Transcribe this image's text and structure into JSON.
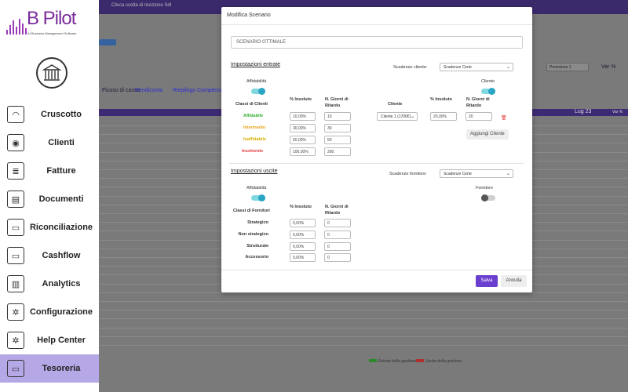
{
  "sidebar": {
    "logo": {
      "text": "B Pilot",
      "subtitle": "AI Business Management Software"
    },
    "items": [
      {
        "label": "Cruscotto",
        "icon": "gauge-icon"
      },
      {
        "label": "Clienti",
        "icon": "user-icon"
      },
      {
        "label": "Fatture",
        "icon": "invoice-icon"
      },
      {
        "label": "Documenti",
        "icon": "document-icon"
      },
      {
        "label": "Riconciliazione",
        "icon": "bank-note-icon"
      },
      {
        "label": "Cashflow",
        "icon": "cash-icon"
      },
      {
        "label": "Analytics",
        "icon": "bar-chart-icon"
      },
      {
        "label": "Configurazione",
        "icon": "gear-icon"
      },
      {
        "label": "Help Center",
        "icon": "gear-icon"
      },
      {
        "label": "Tesoreria",
        "icon": "money-icon"
      }
    ],
    "active_index": 9
  },
  "background": {
    "top_text": "Clicca scelta di ricezione SdI",
    "tabs": [
      "Flusso di cassa",
      "Rendiconto",
      "Riepilogo Complessivo"
    ],
    "header_cols": [
      "Lug 23",
      "Var %"
    ],
    "select_value": "Previsione 1",
    "var_label": "Var %",
    "legend": [
      "Entrate della gestione",
      "Uscite della gestione"
    ]
  },
  "modal": {
    "title": "Modifica Scenario",
    "scenario_name": "SCENARIO OTTIMALE",
    "entrate": {
      "title": "Impostazioni entrate",
      "scadenze_label": "Scadenze cliente:",
      "scadenze_value": "Scadenze Certe",
      "affidabilita_label": "Affidabilità",
      "cliente_toggle_label": "Cliente",
      "col_classi": "Classi di Clienti",
      "col_insoluto": "% Insoluto",
      "col_giorni": "N. Giorni di Ritardo",
      "rows": [
        {
          "label": "Affidabile",
          "color": "#2fae2f",
          "insoluto": "10,00%",
          "giorni": "10"
        },
        {
          "label": "Intermedio",
          "color": "#e8a21a",
          "insoluto": "30,00%",
          "giorni": "30"
        },
        {
          "label": "Inaffidabile",
          "color": "#d6b000",
          "insoluto": "50,00%",
          "giorni": "50"
        },
        {
          "label": "Insolvente",
          "color": "#e03a3a",
          "insoluto": "100,00%",
          "giorni": "200"
        }
      ],
      "col_cliente": "Cliente",
      "col_insoluto2": "% Insoluto",
      "col_giorni2": "N. Giorni di Ritardo",
      "cliente_row": {
        "cliente": "Cliente 1 (1700€)",
        "insoluto": "20,00%",
        "giorni": "20"
      },
      "add_button": "Aggiungi Cliente"
    },
    "uscite": {
      "title": "Impostazioni uscite",
      "scadenze_label": "Scadenze fornitore:",
      "scadenze_value": "Scadenze Certe",
      "affidabilita_label": "Affidabilità",
      "fornitore_toggle_label": "Fornitore",
      "col_classi": "Classi di Fornitori",
      "col_insoluto": "% Insoluto",
      "col_giorni": "N. Giorni di Ritardo",
      "rows": [
        {
          "label": "Strategico",
          "insoluto": "0,00%",
          "giorni": "0"
        },
        {
          "label": "Non strategico",
          "insoluto": "0,00%",
          "giorni": "0"
        },
        {
          "label": "Strutturale",
          "insoluto": "0,00%",
          "giorni": "0"
        },
        {
          "label": "Accessorio",
          "insoluto": "0,00%",
          "giorni": "0"
        }
      ]
    },
    "save_label": "Salva",
    "cancel_label": "Annulla"
  }
}
